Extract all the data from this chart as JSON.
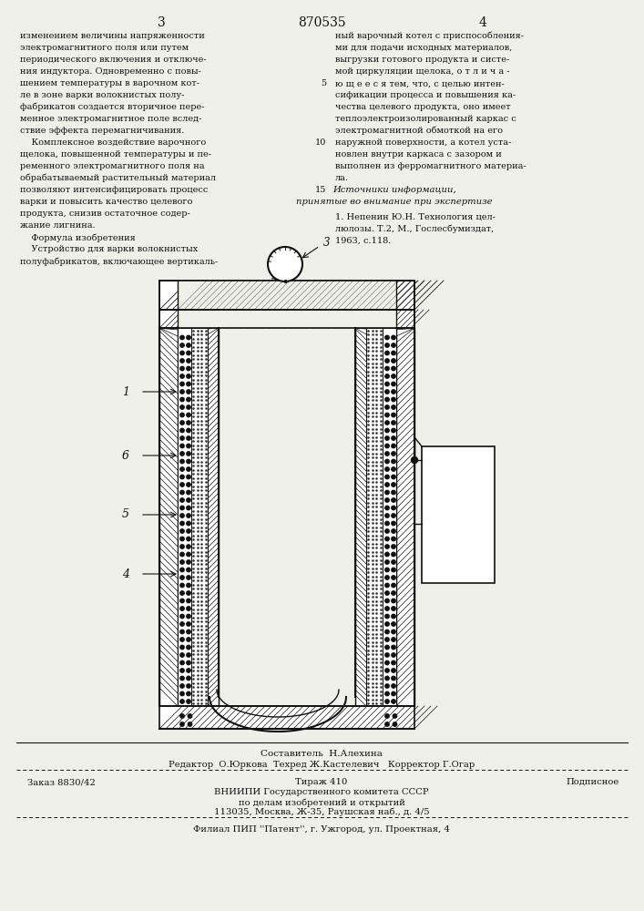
{
  "page_number_left": "3",
  "page_number_center": "870535",
  "page_number_right": "4",
  "left_text_lines": [
    "изменением величины напряженности",
    "электромагнитного поля или путем",
    "периодического включения и отключе-",
    "ния индуктора. Одновременно с повы-",
    "шением температуры в варочном кот-",
    "ле в зоне варки волокнистых полу-",
    "фабрикатов создается вторичное пере-",
    "менное электромагнитное поле вслед-",
    "ствие эффекта перемагничивания.",
    "    Комплексное воздействие варочного",
    "щелока, повышенной температуры и пе-",
    "ременного электромагнитного поля на",
    "обрабатываемый растительный материал",
    "позволяют интенсифицировать процесс",
    "варки и повысить качество целевого",
    "продукта, снизив остаточное содер-",
    "жание лигнина.",
    "    Формула изобретения",
    "    Устройство для варки волокнистых",
    "полуфабрикатов, включающее вертикаль-"
  ],
  "right_text_lines": [
    "ный варочный котел с приспособления-",
    "ми для подачи исходных материалов,",
    "выгрузки готового продукта и систе-",
    "мой циркуляции щелока, о т л и ч а -",
    "ю щ е е с я тем, что, с целью интен-",
    "сификации процесса и повышения ка-",
    "чества целевого продукта, оно имеет",
    "теплоэлектроизолированный каркас с",
    "электромагнитной обмоткой на его",
    "наружной поверхности, а котел уста-",
    "новлен внутри каркаса с зазором и",
    "выполнен из ферромагнитного материа-",
    "ла."
  ],
  "line_numbers": {
    "4": "5",
    "9": "10",
    "13_sources": "15"
  },
  "sources_header": "Источники информации,",
  "sources_subheader": "принятые во внимание при экспертизе",
  "source_1a": "1. Непенин Ю.Н. Технология цел-",
  "source_1b": "люлозы. Т.2, М., Гослесбумиздат,",
  "source_1c": "1963, с.118.",
  "footer_composer": "Составитель  Н.Алехина",
  "footer_editor": "Редактор  О.Юркова  Техред Ж.Кастелевич   Корректор Г.Огар",
  "footer_order": "Заказ 8830/42",
  "footer_tiraz": "Тираж 410",
  "footer_podpis": "Подписное",
  "footer_vniip": "ВНИИПИ Государственного комитета СССР",
  "footer_po": "по делам изобретений и открытий",
  "footer_addr": "113035, Москва, Ж-35, Раушская наб., д. 4/5",
  "footer_filial": "Филиал ПИП ''Патент'', г. Ужгород, ул. Проектная, 4",
  "bg_color": "#f0f0eb",
  "text_color": "#111111",
  "line_color": "#111111"
}
